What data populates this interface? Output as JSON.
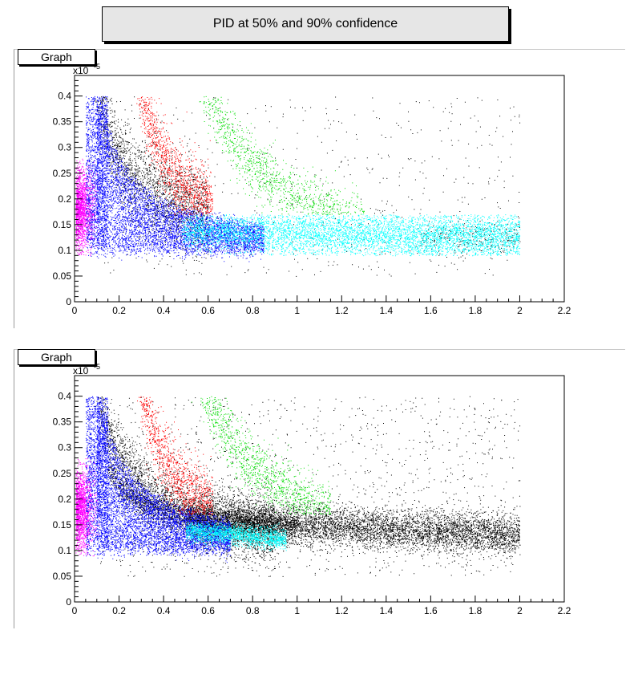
{
  "page": {
    "title": "PID at 50% and 90% confidence"
  },
  "chart_data": [
    {
      "type": "scatter",
      "tab_label": "Graph",
      "exponent_label": "x10",
      "exponent_power": "-5",
      "xlim": [
        0,
        2.2
      ],
      "ylim": [
        0,
        0.44
      ],
      "x_ticks": [
        "0",
        "0.2",
        "0.4",
        "0.6",
        "0.8",
        "1",
        "1.2",
        "1.4",
        "1.6",
        "1.8",
        "2",
        "2.2"
      ],
      "y_ticks": [
        "0",
        "0.05",
        "0.1",
        "0.15",
        "0.2",
        "0.25",
        "0.3",
        "0.35",
        "0.4"
      ],
      "grid": false,
      "series": [
        {
          "color": "#000000",
          "values": "diffuse background points, x 0.03–2.0, y 0.05–0.4"
        },
        {
          "color": "#ff00ff",
          "values": "x 0.01–0.1, y 0.09–0.27"
        },
        {
          "color": "#0000ff",
          "values": "band x 0.05–0.9, y 0.08–0.4"
        },
        {
          "color": "#00ffff",
          "values": "band x 0.48–2.0, y 0.09–0.17"
        },
        {
          "color": "#ff0000",
          "values": "band x 0.25–0.65, y 0.17–0.4"
        },
        {
          "color": "#00dd00",
          "values": "band x 0.5–1.3, y 0.17–0.4"
        }
      ]
    },
    {
      "type": "scatter",
      "tab_label": "Graph",
      "exponent_label": "x10",
      "exponent_power": "-5",
      "xlim": [
        0,
        2.2
      ],
      "ylim": [
        0,
        0.44
      ],
      "x_ticks": [
        "0",
        "0.2",
        "0.4",
        "0.6",
        "0.8",
        "1",
        "1.2",
        "1.4",
        "1.6",
        "1.8",
        "2",
        "2.2"
      ],
      "y_ticks": [
        "0",
        "0.05",
        "0.1",
        "0.15",
        "0.2",
        "0.25",
        "0.3",
        "0.35",
        "0.4"
      ],
      "grid": false,
      "series": [
        {
          "color": "#000000",
          "values": "dense band x 0.1–2.0, y 0.08–0.4"
        },
        {
          "color": "#ff00ff",
          "values": "x 0.01–0.1, y 0.09–0.27"
        },
        {
          "color": "#0000ff",
          "values": "band x 0.05–0.7, y 0.08–0.4"
        },
        {
          "color": "#00ffff",
          "values": "band x 0.5–0.95, y 0.1–0.15"
        },
        {
          "color": "#ff0000",
          "values": "band x 0.25–0.65, y 0.17–0.4"
        },
        {
          "color": "#00dd00",
          "values": "band x 0.5–1.15, y 0.18–0.4"
        }
      ]
    }
  ]
}
